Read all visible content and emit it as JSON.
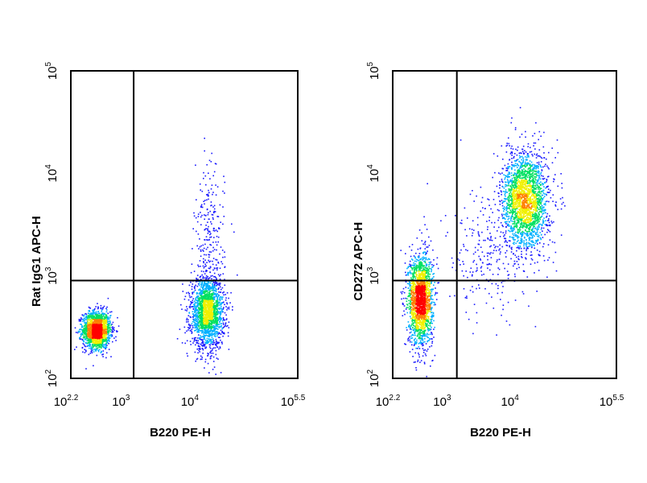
{
  "chart_data": [
    {
      "type": "scatter",
      "title": "",
      "xlabel": "B220 PE-H",
      "ylabel": "Rat IgG1 APC-H",
      "x_scale": "log",
      "y_scale": "log",
      "xlim": [
        158.5,
        316228
      ],
      "ylim": [
        100,
        100000
      ],
      "x_ticks": [
        {
          "base": "10",
          "exp": "2.2",
          "value": 158.5
        },
        {
          "base": "10",
          "exp": "3",
          "value": 1000
        },
        {
          "base": "10",
          "exp": "4",
          "value": 10000
        },
        {
          "base": "10",
          "exp": "5.5",
          "value": 316228
        }
      ],
      "y_ticks": [
        {
          "base": "10",
          "exp": "2",
          "value": 100
        },
        {
          "base": "10",
          "exp": "3",
          "value": 1000
        },
        {
          "base": "10",
          "exp": "4",
          "value": 10000
        },
        {
          "base": "10",
          "exp": "5",
          "value": 100000
        }
      ],
      "gates": {
        "x": 1300,
        "y": 900
      },
      "populations": [
        {
          "x": 370,
          "y": 300,
          "sx": 0.1,
          "sy": 0.09,
          "n": 1800
        },
        {
          "x": 15000,
          "y": 440,
          "sx": 0.12,
          "sy": 0.17,
          "n": 1900
        },
        {
          "x": 16000,
          "y": 2000,
          "sx": 0.11,
          "sy": 0.38,
          "n": 260
        }
      ],
      "grid": false,
      "colormap": [
        "#1a1aff",
        "#00b0ff",
        "#00e060",
        "#f0f000",
        "#ff8000",
        "#ff0000"
      ]
    },
    {
      "type": "scatter",
      "title": "",
      "xlabel": "B220 PE-H",
      "ylabel": "CD272 APC-H",
      "x_scale": "log",
      "y_scale": "log",
      "xlim": [
        158.5,
        316228
      ],
      "ylim": [
        100,
        100000
      ],
      "x_ticks": [
        {
          "base": "10",
          "exp": "2.2",
          "value": 158.5
        },
        {
          "base": "10",
          "exp": "3",
          "value": 1000
        },
        {
          "base": "10",
          "exp": "4",
          "value": 10000
        },
        {
          "base": "10",
          "exp": "5.5",
          "value": 316228
        }
      ],
      "y_ticks": [
        {
          "base": "10",
          "exp": "2",
          "value": 100
        },
        {
          "base": "10",
          "exp": "3",
          "value": 1000
        },
        {
          "base": "10",
          "exp": "4",
          "value": 10000
        },
        {
          "base": "10",
          "exp": "5",
          "value": 100000
        }
      ],
      "gates": {
        "x": 1400,
        "y": 900
      },
      "populations": [
        {
          "x": 400,
          "y": 600,
          "sx": 0.09,
          "sy": 0.22,
          "n": 1900
        },
        {
          "x": 14000,
          "y": 5500,
          "sx": 0.17,
          "sy": 0.24,
          "n": 2200
        },
        {
          "x": 4000,
          "y": 1500,
          "sx": 0.35,
          "sy": 0.3,
          "n": 260
        }
      ],
      "grid": false,
      "colormap": [
        "#1a1aff",
        "#00b0ff",
        "#00e060",
        "#f0f000",
        "#ff8000",
        "#ff0000"
      ]
    }
  ]
}
